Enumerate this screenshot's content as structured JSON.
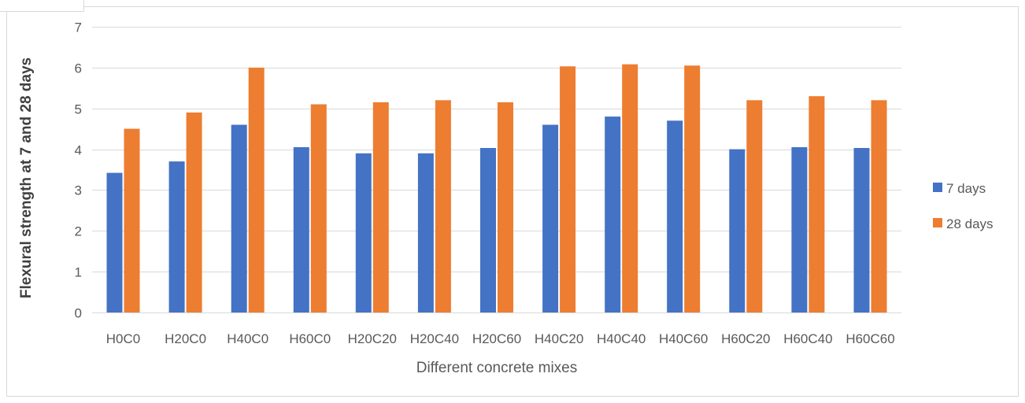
{
  "chart_data": {
    "type": "bar",
    "title": "",
    "xlabel": "Different concrete mixes",
    "ylabel": "Flexural strength at 7 and 28 days",
    "ylim": [
      0,
      7
    ],
    "yticks": [
      0,
      1,
      2,
      3,
      4,
      5,
      6,
      7
    ],
    "grid": true,
    "legend_position": "right",
    "categories": [
      "H0C0",
      "H20C0",
      "H40C0",
      "H60C0",
      "H20C20",
      "H20C40",
      "H20C60",
      "H40C20",
      "H40C40",
      "H40C60",
      "H60C20",
      "H60C40",
      "H60C60"
    ],
    "series": [
      {
        "name": "7 days",
        "color": "#4472c4",
        "values": [
          3.42,
          3.7,
          4.6,
          4.05,
          3.9,
          3.9,
          4.03,
          4.6,
          4.8,
          4.7,
          4.0,
          4.05,
          4.03
        ]
      },
      {
        "name": "28 days",
        "color": "#ed7d31",
        "values": [
          4.5,
          4.9,
          6.0,
          5.1,
          5.15,
          5.2,
          5.15,
          6.03,
          6.08,
          6.05,
          5.2,
          5.3,
          5.2
        ]
      }
    ]
  }
}
